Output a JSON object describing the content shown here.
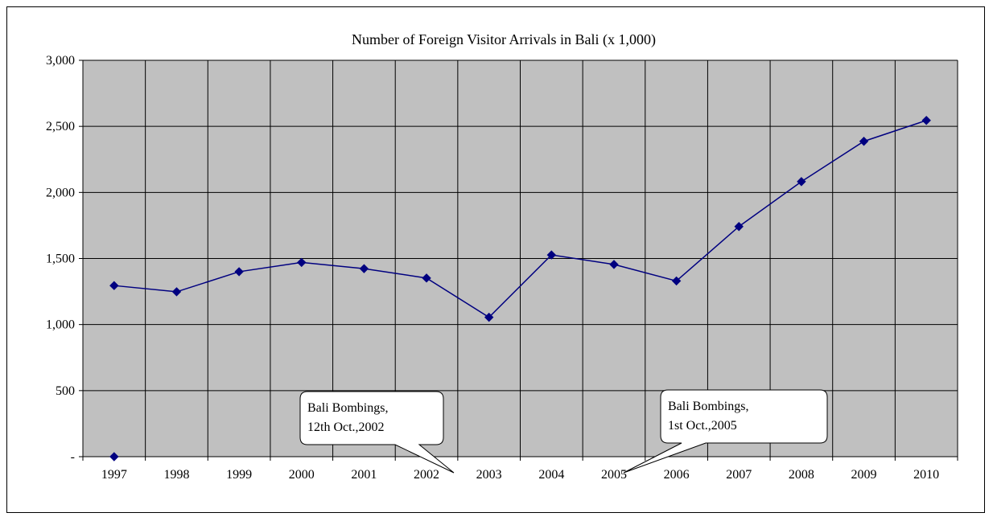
{
  "chart_data": {
    "type": "line",
    "title": "Number of Foreign Visitor Arrivals in Bali (x 1,000)",
    "xlabel": "",
    "ylabel": "",
    "categories": [
      "1997",
      "1998",
      "1999",
      "2000",
      "2001",
      "2002",
      "2003",
      "2004",
      "2005",
      "2006",
      "2007",
      "2008",
      "2009",
      "2010"
    ],
    "series": [
      {
        "values": [
          1295,
          1248,
          1400,
          1470,
          1423,
          1352,
          1055,
          1527,
          1455,
          1330,
          1742,
          2082,
          2387,
          2545
        ],
        "color": "#000080",
        "marker": "diamond"
      }
    ],
    "extra_points": [
      {
        "x": "1997",
        "y": 0
      }
    ],
    "ylim": [
      0,
      3000
    ],
    "yticks": [
      0,
      500,
      1000,
      1500,
      2000,
      2500,
      3000
    ],
    "ytick_labels": [
      "-",
      "500",
      "1,000",
      "1,500",
      "2,000",
      "2,500",
      "3,000"
    ],
    "grid": true,
    "plot_background": "#c0c0c0",
    "annotations": [
      {
        "lines": [
          "Bali Bombings,",
          "12th Oct.,2002"
        ],
        "points_to": "2002"
      },
      {
        "lines": [
          "Bali Bombings,",
          "1st Oct.,2005"
        ],
        "points_to": "2005"
      }
    ]
  }
}
